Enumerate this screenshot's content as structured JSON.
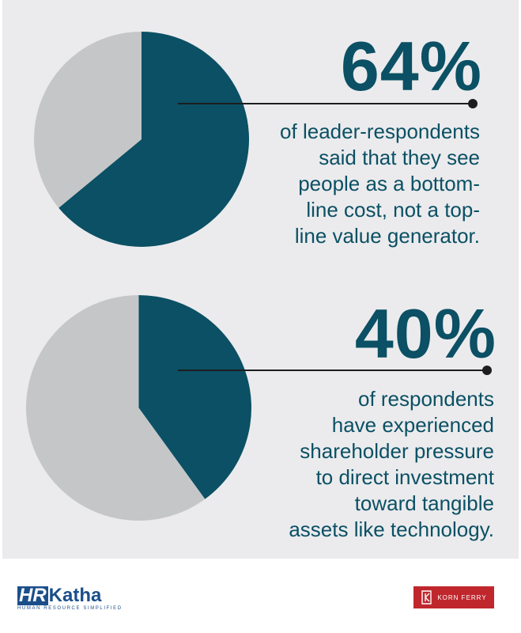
{
  "colors": {
    "teal": "#0b5064",
    "gray": "#c5c6c8",
    "panel": "#ebebed",
    "brand_hr": "#1b4f8a",
    "brand_kf": "#c0272d"
  },
  "chart_data": [
    {
      "type": "pie",
      "title": "64%",
      "slices": [
        {
          "value": 64,
          "color": "#0b5064"
        },
        {
          "value": 36,
          "color": "#c5c6c8"
        }
      ],
      "caption_lines": [
        "of leader-respondents",
        "said that they see",
        "people as a bottom-",
        "line cost, not a top-",
        "line value generator."
      ]
    },
    {
      "type": "pie",
      "title": "40%",
      "slices": [
        {
          "value": 40,
          "color": "#0b5064"
        },
        {
          "value": 60,
          "color": "#c5c6c8"
        }
      ],
      "caption_lines": [
        "of respondents",
        "have experienced",
        "shareholder pressure",
        "to direct investment",
        "toward tangible",
        "assets like technology."
      ]
    }
  ],
  "footer": {
    "hr_logo_prefix": "HR",
    "hr_logo_suffix": "Katha",
    "hr_tagline": "HUMAN RESOURCE SIMPLIFIED",
    "kf_logo_text": "KORN FERRY"
  }
}
